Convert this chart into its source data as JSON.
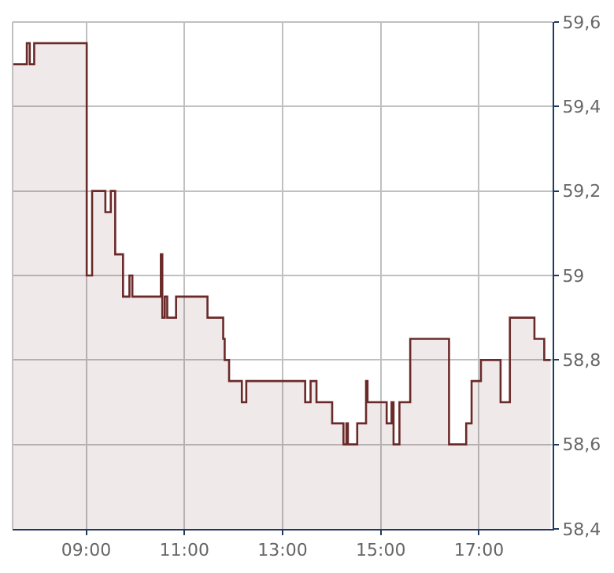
{
  "chart_data": {
    "type": "area",
    "x": [
      7.5,
      7.79,
      7.79,
      7.85,
      7.85,
      7.94,
      7.94,
      9.01,
      9.01,
      9.12,
      9.12,
      9.39,
      9.39,
      9.5,
      9.5,
      9.59,
      9.59,
      9.75,
      9.75,
      9.88,
      9.88,
      9.94,
      9.94,
      10.52,
      10.52,
      10.55,
      10.55,
      10.6,
      10.6,
      10.65,
      10.65,
      10.83,
      10.83,
      11.47,
      11.47,
      11.79,
      11.79,
      11.82,
      11.82,
      11.91,
      11.91,
      12.17,
      12.17,
      12.26,
      12.26,
      13.46,
      13.46,
      13.57,
      13.57,
      13.69,
      13.69,
      14.01,
      14.01,
      14.24,
      14.24,
      14.3,
      14.3,
      14.33,
      14.33,
      14.52,
      14.52,
      14.7,
      14.7,
      14.73,
      14.73,
      15.12,
      15.12,
      15.22,
      15.22,
      15.26,
      15.26,
      15.38,
      15.38,
      15.6,
      15.6,
      16.39,
      16.39,
      16.74,
      16.74,
      16.85,
      16.85,
      17.04,
      17.04,
      17.44,
      17.44,
      17.63,
      17.63,
      18.13,
      18.13,
      18.33,
      18.33,
      18.46
    ],
    "series": [
      {
        "color": "#6b2a2a",
        "values": [
          59.5,
          59.5,
          59.55,
          59.55,
          59.5,
          59.5,
          59.55,
          59.55,
          59.0,
          59.0,
          59.2,
          59.2,
          59.15,
          59.15,
          59.2,
          59.2,
          59.05,
          59.05,
          58.95,
          58.95,
          59.0,
          59.0,
          58.95,
          58.95,
          59.05,
          59.05,
          58.9,
          58.9,
          58.95,
          58.95,
          58.9,
          58.9,
          58.95,
          58.95,
          58.9,
          58.9,
          58.85,
          58.85,
          58.8,
          58.8,
          58.75,
          58.75,
          58.7,
          58.7,
          58.75,
          58.75,
          58.7,
          58.7,
          58.75,
          58.75,
          58.7,
          58.7,
          58.65,
          58.65,
          58.6,
          58.6,
          58.65,
          58.65,
          58.6,
          58.6,
          58.65,
          58.65,
          58.75,
          58.75,
          58.7,
          58.7,
          58.65,
          58.65,
          58.7,
          58.7,
          58.6,
          58.6,
          58.7,
          58.7,
          58.85,
          58.85,
          58.6,
          58.6,
          58.65,
          58.65,
          58.75,
          58.75,
          58.8,
          58.8,
          58.7,
          58.7,
          58.9,
          58.9,
          58.85,
          58.85,
          58.8,
          58.8
        ]
      }
    ],
    "xlim": [
      7.5,
      18.5
    ],
    "xticks": [
      {
        "value": 9,
        "label": "09:00"
      },
      {
        "value": 11,
        "label": "11:00"
      },
      {
        "value": 13,
        "label": "13:00"
      },
      {
        "value": 15,
        "label": "15:00"
      },
      {
        "value": 17,
        "label": "17:00"
      }
    ],
    "ylim": [
      58.4,
      59.6
    ],
    "yticks": [
      {
        "value": 58.4,
        "label": "58,4"
      },
      {
        "value": 58.6,
        "label": "58,6"
      },
      {
        "value": 58.8,
        "label": "58,8"
      },
      59,
      {
        "value": 59.2,
        "label": "59,2"
      },
      {
        "value": 59.4,
        "label": "59,4"
      },
      {
        "value": 59.6,
        "label": "59,6"
      }
    ],
    "grid": true,
    "legend": false
  }
}
